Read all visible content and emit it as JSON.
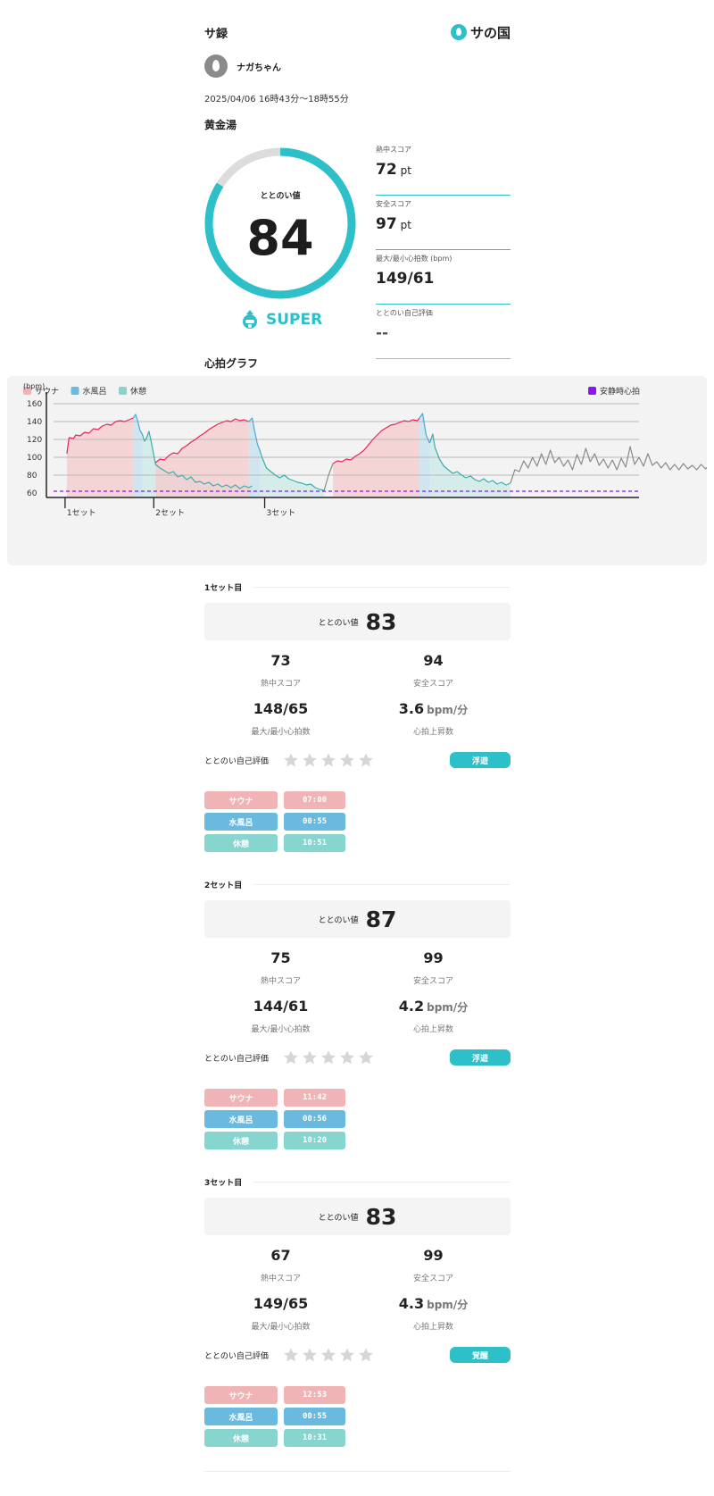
{
  "app": {
    "title": "サ録",
    "logo_text": "サの国"
  },
  "user": {
    "name": "ナガちゃん"
  },
  "session": {
    "datetime": "2025/04/06 16時43分〜18時55分",
    "facility": "黄金湯"
  },
  "totonoi": {
    "label": "ととのい値",
    "value": "84",
    "fraction": 0.84,
    "rank": "SUPER"
  },
  "scores": [
    {
      "label": "熱中スコア",
      "value": "72",
      "unit": "pt"
    },
    {
      "label": "安全スコア",
      "value": "97",
      "unit": "pt"
    },
    {
      "label": "最大/最小心拍数 (bpm)",
      "value": "149/61",
      "unit": ""
    },
    {
      "label": "ととのい自己評価",
      "value": "--",
      "unit": ""
    }
  ],
  "graph": {
    "title": "心拍グラフ"
  },
  "chart_data": {
    "type": "line",
    "ylabel": "(bpm)",
    "yticks": [
      60,
      80,
      100,
      120,
      140,
      160
    ],
    "ylim": [
      55,
      165
    ],
    "xlim": [
      0,
      132
    ],
    "resting_hr": 62,
    "legend": [
      {
        "name": "サウナ",
        "color": "#f1b4b6"
      },
      {
        "name": "水風呂",
        "color": "#6ab9de"
      },
      {
        "name": "休憩",
        "color": "#87d5cf"
      }
    ],
    "legend_right": {
      "name": "安静時心拍",
      "color": "#8a16f0"
    },
    "set_markers": [
      {
        "label": "1セット",
        "t": 3
      },
      {
        "label": "2セット",
        "t": 23
      },
      {
        "label": "3セット",
        "t": 48
      }
    ],
    "segments": [
      {
        "phase": "sauna",
        "color": "#e8245c",
        "points": [
          [
            3,
            104
          ],
          [
            3.5,
            122
          ],
          [
            4.5,
            121
          ],
          [
            5,
            125
          ],
          [
            6,
            124
          ],
          [
            7,
            128
          ],
          [
            8,
            127
          ],
          [
            9,
            132
          ],
          [
            10,
            131
          ],
          [
            11,
            135
          ],
          [
            12,
            137
          ],
          [
            13,
            136
          ],
          [
            14,
            140
          ],
          [
            15,
            141
          ],
          [
            16,
            140
          ],
          [
            17,
            142
          ],
          [
            18,
            144
          ]
        ]
      },
      {
        "phase": "water",
        "color": "#4aa6dc",
        "points": [
          [
            18,
            144
          ],
          [
            18.5,
            148
          ],
          [
            19,
            140
          ],
          [
            19.5,
            130
          ],
          [
            20,
            126
          ]
        ]
      },
      {
        "phase": "rest",
        "color": "#3aaea8",
        "points": [
          [
            20,
            126
          ],
          [
            20.5,
            118
          ],
          [
            21,
            122
          ],
          [
            21.5,
            129
          ],
          [
            22,
            118
          ],
          [
            23,
            92
          ],
          [
            24,
            88
          ],
          [
            25,
            85
          ],
          [
            26,
            82
          ],
          [
            27,
            84
          ],
          [
            28,
            78
          ],
          [
            29,
            80
          ],
          [
            30,
            75
          ],
          [
            31,
            78
          ],
          [
            32,
            72
          ],
          [
            33,
            73
          ],
          [
            34,
            70
          ],
          [
            35,
            72
          ],
          [
            36,
            68
          ],
          [
            37,
            70
          ],
          [
            38,
            67
          ],
          [
            39,
            69
          ],
          [
            40,
            66
          ],
          [
            41,
            69
          ],
          [
            42,
            65
          ],
          [
            43,
            68
          ],
          [
            44,
            66
          ],
          [
            44.8,
            68
          ]
        ]
      },
      {
        "phase": "sauna",
        "color": "#e8245c",
        "points": [
          [
            23,
            94
          ],
          [
            24,
            98
          ],
          [
            25,
            97
          ],
          [
            26,
            102
          ],
          [
            27,
            105
          ],
          [
            28,
            104
          ],
          [
            29,
            110
          ],
          [
            30,
            113
          ],
          [
            31,
            117
          ],
          [
            32,
            120
          ],
          [
            33,
            124
          ],
          [
            34,
            127
          ],
          [
            35,
            131
          ],
          [
            36,
            134
          ],
          [
            37,
            137
          ],
          [
            38,
            139
          ],
          [
            39,
            141
          ],
          [
            40,
            140
          ],
          [
            41,
            143
          ],
          [
            42,
            141
          ],
          [
            43,
            142
          ],
          [
            44,
            140
          ]
        ]
      },
      {
        "phase": "water",
        "color": "#4aa6dc",
        "points": [
          [
            44,
            140
          ],
          [
            44.8,
            144
          ],
          [
            45.3,
            130
          ],
          [
            46,
            114
          ],
          [
            46.5,
            108
          ]
        ]
      },
      {
        "phase": "rest",
        "color": "#3aaea8",
        "points": [
          [
            46.5,
            108
          ],
          [
            47,
            100
          ],
          [
            48,
            88
          ],
          [
            49,
            84
          ],
          [
            50,
            80
          ],
          [
            51,
            77
          ],
          [
            52,
            80
          ],
          [
            53,
            76
          ],
          [
            54,
            74
          ],
          [
            55,
            72
          ],
          [
            56,
            71
          ],
          [
            57,
            69
          ],
          [
            58,
            70
          ],
          [
            59,
            66
          ],
          [
            60,
            64
          ],
          [
            61,
            63
          ]
        ]
      },
      {
        "phase": "sauna",
        "color": "#e8245c",
        "points": [
          [
            63,
            93
          ],
          [
            64,
            96
          ],
          [
            65,
            95
          ],
          [
            66,
            98
          ],
          [
            67,
            97
          ],
          [
            68,
            101
          ],
          [
            69,
            104
          ],
          [
            70,
            108
          ],
          [
            71,
            114
          ],
          [
            72,
            120
          ],
          [
            73,
            125
          ],
          [
            74,
            130
          ],
          [
            75,
            133
          ],
          [
            76,
            136
          ],
          [
            77,
            137
          ],
          [
            78,
            139
          ],
          [
            79,
            141
          ],
          [
            80,
            140
          ],
          [
            81,
            142
          ],
          [
            82,
            141
          ],
          [
            82.5,
            144
          ]
        ]
      },
      {
        "phase": "water",
        "color": "#4aa6dc",
        "points": [
          [
            82.5,
            144
          ],
          [
            83.2,
            149
          ],
          [
            84,
            125
          ],
          [
            84.8,
            116
          ]
        ]
      },
      {
        "phase": "rest",
        "color": "#3aaea8",
        "points": [
          [
            84.8,
            116
          ],
          [
            85.5,
            126
          ],
          [
            86,
            111
          ],
          [
            87,
            98
          ],
          [
            88,
            90
          ],
          [
            89,
            86
          ],
          [
            90,
            82
          ],
          [
            91,
            84
          ],
          [
            92,
            80
          ],
          [
            93,
            77
          ],
          [
            94,
            79
          ],
          [
            95,
            75
          ],
          [
            96,
            73
          ],
          [
            97,
            76
          ],
          [
            98,
            72
          ],
          [
            99,
            74
          ],
          [
            100,
            70
          ],
          [
            101,
            72
          ],
          [
            102,
            69
          ],
          [
            103,
            71
          ]
        ]
      },
      {
        "phase": "other",
        "color": "#8a8a8a",
        "points": [
          [
            61,
            63
          ],
          [
            62,
            80
          ],
          [
            63,
            93
          ]
        ]
      },
      {
        "phase": "other",
        "color": "#8a8a8a",
        "points": [
          [
            103,
            71
          ],
          [
            104,
            86
          ],
          [
            105,
            84
          ],
          [
            106,
            96
          ],
          [
            107,
            88
          ],
          [
            108,
            100
          ],
          [
            109,
            90
          ],
          [
            110,
            104
          ],
          [
            111,
            92
          ],
          [
            112,
            108
          ],
          [
            113,
            94
          ],
          [
            114,
            100
          ],
          [
            115,
            90
          ],
          [
            116,
            97
          ],
          [
            117,
            86
          ],
          [
            118,
            103
          ],
          [
            119,
            92
          ],
          [
            120,
            110
          ],
          [
            121,
            95
          ],
          [
            122,
            104
          ],
          [
            123,
            91
          ],
          [
            124,
            98
          ],
          [
            125,
            88
          ],
          [
            126,
            97
          ],
          [
            127,
            86
          ],
          [
            128,
            99
          ],
          [
            129,
            89
          ],
          [
            130,
            112
          ],
          [
            131,
            92
          ],
          [
            132,
            100
          ],
          [
            133,
            90
          ],
          [
            134,
            104
          ],
          [
            135,
            91
          ],
          [
            136,
            95
          ],
          [
            137,
            88
          ],
          [
            138,
            94
          ],
          [
            139,
            86
          ],
          [
            140,
            92
          ],
          [
            141,
            86
          ],
          [
            142,
            93
          ],
          [
            143,
            87
          ],
          [
            144,
            91
          ],
          [
            145,
            86
          ],
          [
            146,
            92
          ],
          [
            147,
            87
          ],
          [
            148,
            92
          ],
          [
            149,
            86
          ],
          [
            150,
            90
          ],
          [
            151,
            85
          ],
          [
            152,
            92
          ],
          [
            153,
            86
          ],
          [
            154,
            89
          ],
          [
            155,
            84
          ],
          [
            156,
            90
          ],
          [
            157,
            85
          ],
          [
            158,
            89
          ],
          [
            159,
            84
          ],
          [
            160,
            91
          ],
          [
            161,
            85
          ],
          [
            162,
            95
          ],
          [
            163,
            86
          ],
          [
            164,
            97
          ],
          [
            165,
            88
          ]
        ]
      }
    ],
    "phase_bands": [
      {
        "phase": "sauna",
        "from": 3,
        "to": 18
      },
      {
        "phase": "water",
        "from": 18,
        "to": 20
      },
      {
        "phase": "rest",
        "from": 20,
        "to": 44.8
      },
      {
        "phase": "sauna",
        "from": 23,
        "to": 44
      },
      {
        "phase": "water",
        "from": 44,
        "to": 46.5
      },
      {
        "phase": "rest",
        "from": 46.5,
        "to": 61
      },
      {
        "phase": "sauna",
        "from": 63,
        "to": 82.5
      },
      {
        "phase": "water",
        "from": 82.5,
        "to": 84.8
      },
      {
        "phase": "rest",
        "from": 84.8,
        "to": 103
      }
    ]
  },
  "set_labels": {
    "totonoi": "ととのい値",
    "heat": "熱中スコア",
    "safety": "安全スコア",
    "hr": "最大/最小心拍数",
    "rise": "心拍上昇数",
    "rise_unit": "bpm/分",
    "self_eval": "ととのい自己評価"
  },
  "sets": [
    {
      "title": "1セット目",
      "totonoi": "83",
      "heat": "73",
      "safety": "94",
      "hr": "148/65",
      "rise": "3.6",
      "state": "浮遊",
      "phases": [
        {
          "name": "サウナ",
          "time": "07:00"
        },
        {
          "name": "水風呂",
          "time": "00:55"
        },
        {
          "name": "休憩",
          "time": "10:51"
        }
      ]
    },
    {
      "title": "2セット目",
      "totonoi": "87",
      "heat": "75",
      "safety": "99",
      "hr": "144/61",
      "rise": "4.2",
      "state": "浮遊",
      "phases": [
        {
          "name": "サウナ",
          "time": "11:42"
        },
        {
          "name": "水風呂",
          "time": "00:56"
        },
        {
          "name": "休憩",
          "time": "10:20"
        }
      ]
    },
    {
      "title": "3セット目",
      "totonoi": "83",
      "heat": "67",
      "safety": "99",
      "hr": "149/65",
      "rise": "4.3",
      "state": "覚醒",
      "phases": [
        {
          "name": "サウナ",
          "time": "12:53"
        },
        {
          "name": "水風呂",
          "time": "00:55"
        },
        {
          "name": "休憩",
          "time": "10:31"
        }
      ]
    }
  ]
}
